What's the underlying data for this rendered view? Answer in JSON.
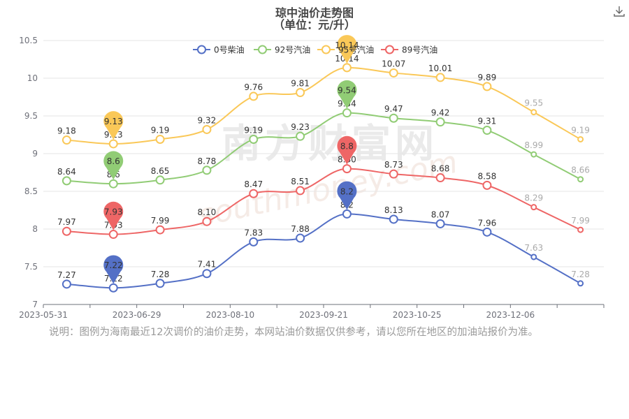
{
  "title_line1": "琼中油价走势图",
  "title_line2": "（单位：元/升）",
  "note": "说明：图例为海南最近12次调价的油价走势，本网站油价数据仅供参考，请以您所在地区的加油站报价为准。",
  "watermark": "南方财富网",
  "watermark_url": "southmoney.com",
  "toolbox": {
    "download_icon": "download-icon"
  },
  "chart_data": {
    "type": "line",
    "smooth": true,
    "title": "琼中油价走势图（单位：元/升）",
    "x_tick_labels": [
      "2023-05-31",
      "2023-06-29",
      "2023-08-10",
      "2023-09-21",
      "2023-10-25",
      "2023-12-06"
    ],
    "ylim": [
      7,
      10.5
    ],
    "yticks": [
      7,
      7.5,
      8,
      8.5,
      9,
      9.5,
      10,
      10.5
    ],
    "ytick_labels": [
      "7",
      "7.5",
      "8",
      "8.5",
      "9",
      "9.5",
      "10",
      "10.5"
    ],
    "grid": "horizontal",
    "legend_position": "top-center",
    "series": [
      {
        "name": "0号柴油",
        "color": "#5470c6",
        "values": [
          7.27,
          7.22,
          7.28,
          7.41,
          7.83,
          7.88,
          8.2,
          8.13,
          8.07,
          7.96,
          7.63,
          7.28
        ],
        "labels": [
          "7.27",
          "7.22",
          "7.28",
          "7.41",
          "7.83",
          "7.88",
          "8.2",
          "8.13",
          "8.07",
          "7.96",
          "7.63",
          "7.28"
        ],
        "min_marker": {
          "index": 1,
          "label": "7.22"
        },
        "max_marker": {
          "index": 6,
          "label": "8.2"
        }
      },
      {
        "name": "92号汽油",
        "color": "#91cc75",
        "values": [
          8.64,
          8.6,
          8.65,
          8.78,
          9.19,
          9.23,
          9.54,
          9.47,
          9.42,
          9.31,
          8.99,
          8.66
        ],
        "labels": [
          "8.64",
          "8.6",
          "8.65",
          "8.78",
          "9.19",
          "9.23",
          "9.54",
          "9.47",
          "9.42",
          "9.31",
          "8.99",
          "8.66"
        ],
        "min_marker": {
          "index": 1,
          "label": "8.6"
        },
        "max_marker": {
          "index": 6,
          "label": "9.54"
        }
      },
      {
        "name": "95号汽油",
        "color": "#fac858",
        "values": [
          9.18,
          9.13,
          9.19,
          9.32,
          9.76,
          9.81,
          10.14,
          10.07,
          10.01,
          9.89,
          9.55,
          9.19
        ],
        "labels": [
          "9.18",
          "9.13",
          "9.19",
          "9.32",
          "9.76",
          "9.81",
          "10.14",
          "10.07",
          "10.01",
          "9.89",
          "9.55",
          "9.19"
        ],
        "min_marker": {
          "index": 1,
          "label": "9.13"
        },
        "max_marker": {
          "index": 6,
          "label": "10.14"
        }
      },
      {
        "name": "89号汽油",
        "color": "#ee6666",
        "values": [
          7.97,
          7.93,
          7.99,
          8.1,
          8.47,
          8.51,
          8.8,
          8.73,
          8.68,
          8.58,
          8.29,
          7.99
        ],
        "labels": [
          "7.97",
          "7.93",
          "7.99",
          "8.10",
          "8.47",
          "8.51",
          "8.80",
          "8.73",
          "8.68",
          "8.58",
          "8.29",
          "7.99"
        ],
        "min_marker": {
          "index": 1,
          "label": "7.93"
        },
        "max_marker": {
          "index": 6,
          "label": "8.8"
        }
      }
    ]
  }
}
